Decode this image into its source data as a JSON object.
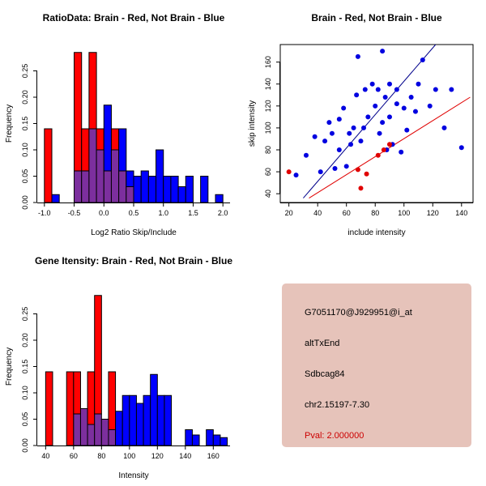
{
  "window": {
    "background": "#ffffff"
  },
  "info_panel": {
    "background": "#e6c3ba",
    "lines": [
      {
        "text": "G7051170@J929951@i_at",
        "color": "#000000"
      },
      {
        "text": "altTxEnd",
        "color": "#000000"
      },
      {
        "text": "Sdbcag84",
        "color": "#000000"
      },
      {
        "text": "chr2.15197-7.30",
        "color": "#000000"
      },
      {
        "text": "Pval: 2.000000",
        "color": "#cc0000"
      }
    ]
  },
  "chart_data": [
    {
      "type": "bar",
      "subtype": "overlaid-histogram",
      "panel": "top-left",
      "title": "RatioData: Brain - Red, Not Brain - Blue",
      "xlabel": "Log2 Ratio Skip/Include",
      "ylabel": "Frequency",
      "xlim": [
        -1.12,
        2.12
      ],
      "ylim": [
        0,
        0.3
      ],
      "xticks": [
        -1.0,
        -0.5,
        0.0,
        0.5,
        1.0,
        1.5,
        2.0
      ],
      "xtick_labels": [
        "-1.0",
        "-0.5",
        "0.0",
        "0.5",
        "1.0",
        "1.5",
        "2.0"
      ],
      "yticks": [
        0.0,
        0.05,
        0.1,
        0.15,
        0.2,
        0.25
      ],
      "ytick_labels": [
        "0.00",
        "0.05",
        "0.10",
        "0.15",
        "0.20",
        "0.25"
      ],
      "bin_start": -1.0,
      "bin_width": 0.125,
      "overlap_color": "#7c2f9e",
      "grid": false,
      "series": [
        {
          "name": "Brain",
          "color": "#ff0000",
          "values": [
            0.14,
            0,
            0,
            0,
            0.285,
            0.14,
            0.285,
            0.14,
            0.06,
            0.14,
            0.06,
            0.03,
            0,
            0,
            0,
            0,
            0,
            0,
            0,
            0,
            0,
            0,
            0,
            0
          ]
        },
        {
          "name": "Not Brain",
          "color": "#0000ff",
          "values": [
            0,
            0.015,
            0,
            0,
            0.06,
            0.06,
            0.14,
            0.1,
            0.185,
            0.1,
            0.14,
            0.06,
            0.05,
            0.06,
            0.05,
            0.1,
            0.05,
            0.05,
            0.03,
            0.05,
            0,
            0.05,
            0,
            0.015
          ]
        }
      ]
    },
    {
      "type": "scatter",
      "panel": "top-right",
      "title": "Brain - Red, Not Brain - Blue",
      "xlabel": "include intensity",
      "ylabel": "skip intensity",
      "xlim": [
        14,
        148
      ],
      "ylim": [
        32,
        176
      ],
      "xticks": [
        20,
        40,
        60,
        80,
        100,
        120,
        140
      ],
      "xtick_labels": [
        "20",
        "40",
        "60",
        "80",
        "100",
        "120",
        "140"
      ],
      "yticks": [
        40,
        60,
        80,
        100,
        120,
        140,
        160
      ],
      "ytick_labels": [
        "40",
        "60",
        "80",
        "100",
        "120",
        "140",
        "160"
      ],
      "grid": false,
      "box": true,
      "series": [
        {
          "name": "Not Brain",
          "color": "#0000e0",
          "points": [
            [
              25,
              57
            ],
            [
              32,
              75
            ],
            [
              38,
              92
            ],
            [
              42,
              60
            ],
            [
              45,
              88
            ],
            [
              48,
              105
            ],
            [
              50,
              95
            ],
            [
              52,
              63
            ],
            [
              55,
              80
            ],
            [
              55,
              108
            ],
            [
              58,
              118
            ],
            [
              60,
              65
            ],
            [
              62,
              95
            ],
            [
              63,
              85
            ],
            [
              65,
              100
            ],
            [
              67,
              130
            ],
            [
              68,
              165
            ],
            [
              70,
              88
            ],
            [
              72,
              100
            ],
            [
              73,
              135
            ],
            [
              75,
              110
            ],
            [
              78,
              140
            ],
            [
              80,
              120
            ],
            [
              82,
              135
            ],
            [
              83,
              95
            ],
            [
              85,
              105
            ],
            [
              85,
              170
            ],
            [
              87,
              128
            ],
            [
              88,
              80
            ],
            [
              90,
              140
            ],
            [
              90,
              110
            ],
            [
              92,
              85
            ],
            [
              95,
              135
            ],
            [
              95,
              122
            ],
            [
              98,
              78
            ],
            [
              100,
              118
            ],
            [
              102,
              98
            ],
            [
              105,
              128
            ],
            [
              108,
              115
            ],
            [
              110,
              140
            ],
            [
              113,
              162
            ],
            [
              118,
              120
            ],
            [
              122,
              135
            ],
            [
              128,
              100
            ],
            [
              133,
              135
            ],
            [
              140,
              82
            ]
          ]
        },
        {
          "name": "Brain",
          "color": "#e00000",
          "points": [
            [
              20,
              60
            ],
            [
              68,
              62
            ],
            [
              70,
              45
            ],
            [
              74,
              58
            ],
            [
              82,
              75
            ],
            [
              86,
              80
            ],
            [
              90,
              85
            ]
          ]
        }
      ],
      "fit_lines": [
        {
          "name": "not-brain-fit",
          "color": "#00008b",
          "x1": 30,
          "y1": 36,
          "x2": 122,
          "y2": 176
        },
        {
          "name": "brain-fit",
          "color": "#e00000",
          "x1": 34,
          "y1": 36,
          "x2": 146,
          "y2": 128
        }
      ]
    },
    {
      "type": "bar",
      "subtype": "overlaid-histogram",
      "panel": "bottom-left",
      "title": "Gene Itensity: Brain - Red, Not Brain - Blue",
      "xlabel": "Intensity",
      "ylabel": "Frequency",
      "xlim": [
        34,
        172
      ],
      "ylim": [
        0,
        0.3
      ],
      "xticks": [
        40,
        60,
        80,
        100,
        120,
        140,
        160
      ],
      "xtick_labels": [
        "40",
        "60",
        "80",
        "100",
        "120",
        "140",
        "160"
      ],
      "yticks": [
        0.0,
        0.05,
        0.1,
        0.15,
        0.2,
        0.25
      ],
      "ytick_labels": [
        "0.00",
        "0.05",
        "0.10",
        "0.15",
        "0.20",
        "0.25"
      ],
      "bin_start": 40,
      "bin_width": 5,
      "overlap_color": "#7c2f9e",
      "grid": false,
      "series": [
        {
          "name": "Brain",
          "color": "#ff0000",
          "values": [
            0.14,
            0,
            0,
            0.14,
            0.14,
            0.07,
            0.14,
            0.285,
            0.05,
            0.14,
            0,
            0,
            0,
            0,
            0,
            0,
            0,
            0,
            0,
            0,
            0,
            0,
            0,
            0,
            0,
            0
          ]
        },
        {
          "name": "Not Brain",
          "color": "#0000ff",
          "values": [
            0,
            0,
            0,
            0,
            0.06,
            0.07,
            0.04,
            0.06,
            0.05,
            0.03,
            0.065,
            0.095,
            0.095,
            0.08,
            0.095,
            0.135,
            0.095,
            0.095,
            0,
            0,
            0.03,
            0.02,
            0,
            0.03,
            0.02,
            0.015
          ]
        }
      ]
    }
  ]
}
